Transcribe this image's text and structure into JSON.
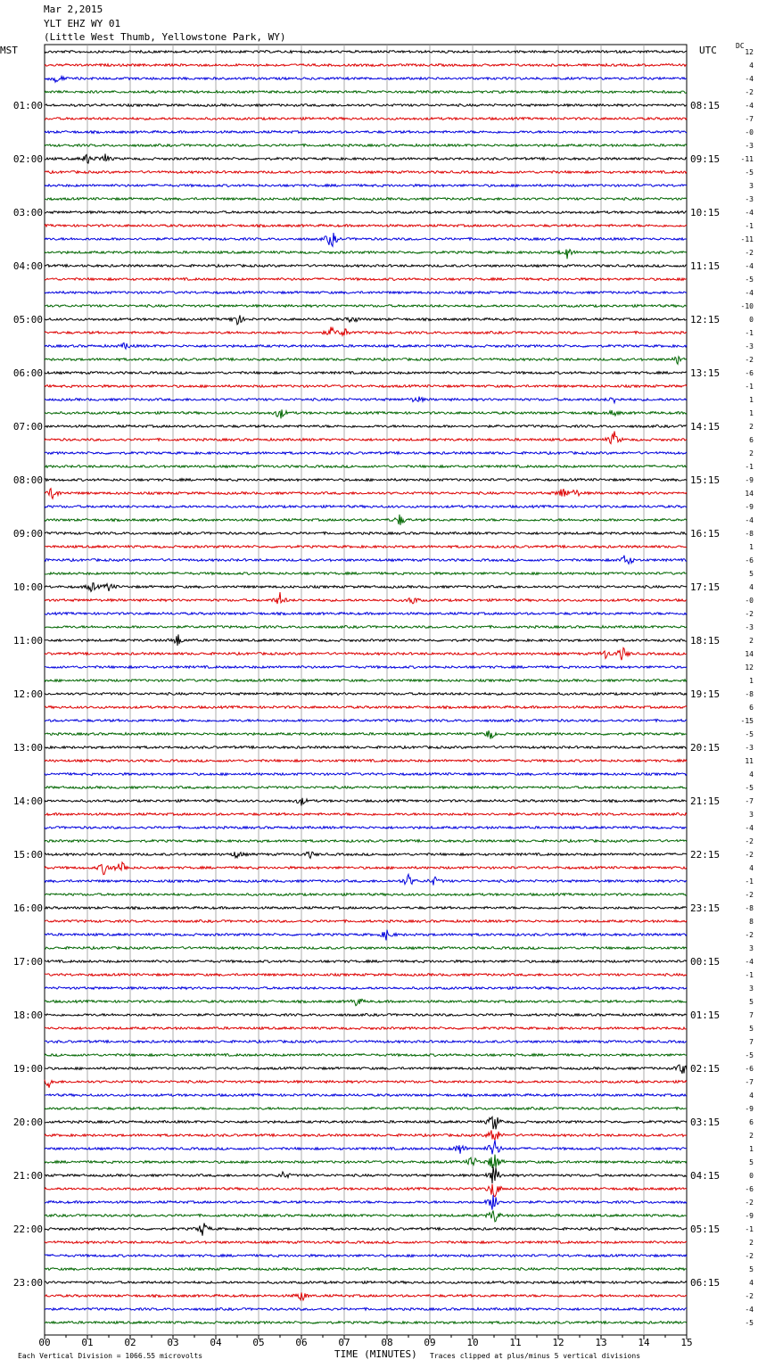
{
  "header": {
    "date": "Mar 2,2015",
    "station": "YLT EHZ WY 01",
    "location": "(Little West Thumb, Yellowstone Park, WY)"
  },
  "left_axis_title": "MST",
  "right_axis_title": "UTC",
  "dc_label": "DC",
  "footer": {
    "scale_note": "Each Vertical Division = 1066.55 microvolts",
    "clip_note": "Traces clipped at plus/minus 5 vertical divisions"
  },
  "colors": {
    "trace_cycle": [
      "#000000",
      "#dd0000",
      "#0000dd",
      "#006600"
    ],
    "grid": "#999999"
  },
  "chart_data": {
    "type": "line",
    "xlabel": "TIME (MINUTES)",
    "x_ticks": [
      "00",
      "01",
      "02",
      "03",
      "04",
      "05",
      "06",
      "07",
      "08",
      "09",
      "10",
      "11",
      "12",
      "13",
      "14",
      "15"
    ],
    "xlim": [
      0,
      15
    ],
    "hour_labels_mst": [
      "01:00",
      "02:00",
      "03:00",
      "04:00",
      "05:00",
      "06:00",
      "07:00",
      "08:00",
      "09:00",
      "10:00",
      "11:00",
      "12:00",
      "13:00",
      "14:00",
      "15:00",
      "16:00",
      "17:00",
      "18:00",
      "19:00",
      "20:00",
      "21:00",
      "22:00",
      "23:00"
    ],
    "hour_labels_utc": [
      "08:15",
      "09:15",
      "10:15",
      "11:15",
      "12:15",
      "13:15",
      "14:15",
      "15:15",
      "16:15",
      "17:15",
      "18:15",
      "19:15",
      "20:15",
      "21:15",
      "22:15",
      "23:15",
      "00:15",
      "01:15",
      "02:15",
      "03:15",
      "04:15",
      "05:15",
      "06:15"
    ],
    "dc_offsets": [
      "12",
      "4",
      "-4",
      "-2",
      "-4",
      "-7",
      "-0",
      "-3",
      "-11",
      "-5",
      "3",
      "-3",
      "-4",
      "-1",
      "-11",
      "-2",
      "-4",
      "-5",
      "-4",
      "-10",
      "0",
      "-1",
      "-3",
      "-2",
      "-6",
      "-1",
      "1",
      "1",
      "2",
      "6",
      "2",
      "-1",
      "-9",
      "14",
      "-9",
      "-4",
      "-8",
      "1",
      "-6",
      "5",
      "4",
      "-0",
      "-2",
      "-3",
      "2",
      "14",
      "12",
      "1",
      "-8",
      "6",
      "-15",
      "-5",
      "-3",
      "11",
      "4",
      "-5",
      "-7",
      "3",
      "-4",
      "-2",
      "-2",
      "4",
      "-1",
      "-2",
      "-8",
      "8",
      "-2",
      "3",
      "-4",
      "-1",
      "3",
      "5",
      "7",
      "5",
      "7",
      "-5",
      "-6",
      "-7",
      "4",
      "-9",
      "6",
      "2",
      "1",
      "5",
      "0",
      "-6",
      "-2",
      "-9",
      "-1",
      "2",
      "-2",
      "5",
      "4",
      "-2",
      "-4",
      "-5"
    ],
    "events": [
      {
        "row": 2,
        "minute": 0.3,
        "amp": 6
      },
      {
        "row": 8,
        "minute": 1.0,
        "amp": 6
      },
      {
        "row": 8,
        "minute": 1.4,
        "amp": 6
      },
      {
        "row": 14,
        "minute": 6.7,
        "amp": 12
      },
      {
        "row": 15,
        "minute": 12.2,
        "amp": 7
      },
      {
        "row": 20,
        "minute": 4.5,
        "amp": 8
      },
      {
        "row": 20,
        "minute": 7.2,
        "amp": 5
      },
      {
        "row": 21,
        "minute": 6.7,
        "amp": 6
      },
      {
        "row": 21,
        "minute": 7.0,
        "amp": 5
      },
      {
        "row": 22,
        "minute": 1.9,
        "amp": 4
      },
      {
        "row": 23,
        "minute": 14.8,
        "amp": 5
      },
      {
        "row": 26,
        "minute": 8.7,
        "amp": 5
      },
      {
        "row": 26,
        "minute": 13.3,
        "amp": 4
      },
      {
        "row": 27,
        "minute": 5.5,
        "amp": 8
      },
      {
        "row": 27,
        "minute": 13.3,
        "amp": 4
      },
      {
        "row": 29,
        "minute": 13.3,
        "amp": 10
      },
      {
        "row": 33,
        "minute": 0.2,
        "amp": 9
      },
      {
        "row": 33,
        "minute": 12.1,
        "amp": 8
      },
      {
        "row": 33,
        "minute": 12.4,
        "amp": 5
      },
      {
        "row": 35,
        "minute": 8.3,
        "amp": 7
      },
      {
        "row": 38,
        "minute": 13.6,
        "amp": 10
      },
      {
        "row": 40,
        "minute": 1.1,
        "amp": 6
      },
      {
        "row": 40,
        "minute": 1.5,
        "amp": 5
      },
      {
        "row": 41,
        "minute": 5.5,
        "amp": 8
      },
      {
        "row": 41,
        "minute": 8.6,
        "amp": 5
      },
      {
        "row": 44,
        "minute": 3.1,
        "amp": 8
      },
      {
        "row": 45,
        "minute": 13.1,
        "amp": 5
      },
      {
        "row": 45,
        "minute": 13.5,
        "amp": 9
      },
      {
        "row": 51,
        "minute": 10.4,
        "amp": 7
      },
      {
        "row": 56,
        "minute": 6.0,
        "amp": 5
      },
      {
        "row": 60,
        "minute": 4.5,
        "amp": 5
      },
      {
        "row": 60,
        "minute": 6.2,
        "amp": 4
      },
      {
        "row": 61,
        "minute": 1.4,
        "amp": 9
      },
      {
        "row": 61,
        "minute": 1.8,
        "amp": 9
      },
      {
        "row": 62,
        "minute": 8.5,
        "amp": 8
      },
      {
        "row": 62,
        "minute": 9.1,
        "amp": 5
      },
      {
        "row": 66,
        "minute": 8.0,
        "amp": 7
      },
      {
        "row": 71,
        "minute": 7.3,
        "amp": 6
      },
      {
        "row": 76,
        "minute": 14.9,
        "amp": 8
      },
      {
        "row": 77,
        "minute": 0.1,
        "amp": 6
      },
      {
        "row": 82,
        "minute": 9.7,
        "amp": 8
      },
      {
        "row": 83,
        "minute": 10.0,
        "amp": 8
      },
      {
        "row": 84,
        "minute": 5.6,
        "amp": 5
      },
      {
        "row": 88,
        "minute": 3.7,
        "amp": 9
      },
      {
        "row": 93,
        "minute": 6.0,
        "amp": 7
      },
      {
        "row": 80,
        "minute": 10.5,
        "amp": 14
      },
      {
        "row": 81,
        "minute": 10.5,
        "amp": 14
      },
      {
        "row": 82,
        "minute": 10.5,
        "amp": 14
      },
      {
        "row": 83,
        "minute": 10.5,
        "amp": 14
      },
      {
        "row": 84,
        "minute": 10.5,
        "amp": 14
      },
      {
        "row": 85,
        "minute": 10.5,
        "amp": 14
      },
      {
        "row": 86,
        "minute": 10.5,
        "amp": 14
      },
      {
        "row": 87,
        "minute": 10.5,
        "amp": 10
      }
    ]
  }
}
